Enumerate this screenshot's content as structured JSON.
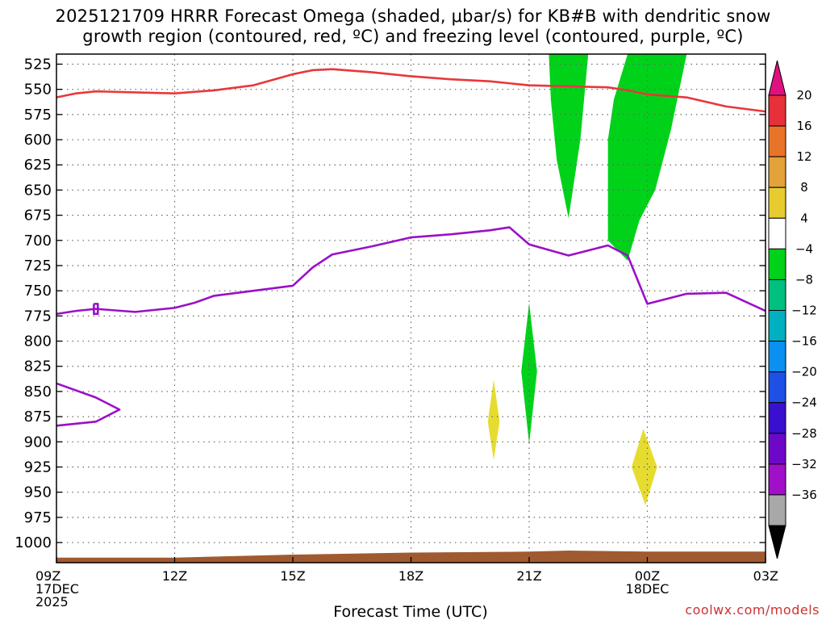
{
  "chart_data": {
    "type": "area",
    "title_line1": "2025121709 HRRR Forecast Omega (shaded, μbar/s) for KB#B with dendritic snow",
    "title_line2": "growth region (contoured, red, ºC) and freezing level (contoured, purple, ºC)",
    "xlabel": "Forecast Time (UTC)",
    "credit": "coolwx.com/models",
    "x_unit": "hours since 09Z 17DEC 2025",
    "xlim": [
      0,
      18
    ],
    "ylim": [
      1020,
      515
    ],
    "x_ticks": [
      {
        "x": 0,
        "lines": [
          "09Z",
          "17DEC",
          "2025"
        ]
      },
      {
        "x": 3,
        "lines": [
          "12Z"
        ]
      },
      {
        "x": 6,
        "lines": [
          "15Z"
        ]
      },
      {
        "x": 9,
        "lines": [
          "18Z"
        ]
      },
      {
        "x": 12,
        "lines": [
          "21Z"
        ]
      },
      {
        "x": 15,
        "lines": [
          "00Z",
          "18DEC"
        ]
      },
      {
        "x": 18,
        "lines": [
          "03Z"
        ]
      }
    ],
    "y_ticks": [
      "525",
      "550",
      "575",
      "600",
      "625",
      "650",
      "675",
      "700",
      "725",
      "750",
      "775",
      "800",
      "825",
      "850",
      "875",
      "900",
      "925",
      "950",
      "975",
      "1000"
    ],
    "grid": true,
    "colorbar": {
      "top_arrow_color": "#e0117f",
      "bottom_arrow_color": "#000000",
      "bins": [
        {
          "label": "20",
          "color": "#e8303a"
        },
        {
          "label": "16",
          "color": "#e8742a"
        },
        {
          "label": "12",
          "color": "#e3a23a"
        },
        {
          "label": "8",
          "color": "#e6cc2e"
        },
        {
          "label": "4",
          "color": "#ffffff"
        },
        {
          "label": "−4",
          "color": "#00d21a"
        },
        {
          "label": "−8",
          "color": "#00c080"
        },
        {
          "label": "−12",
          "color": "#00b0c0"
        },
        {
          "label": "−16",
          "color": "#0a90f0"
        },
        {
          "label": "−20",
          "color": "#1e50e6"
        },
        {
          "label": "−24",
          "color": "#3a10d0"
        },
        {
          "label": "−28",
          "color": "#6e08c8"
        },
        {
          "label": "−32",
          "color": "#a010c8"
        },
        {
          "label": "−36",
          "color": "#a8a8a8"
        }
      ]
    },
    "series": [
      {
        "kind": "line",
        "color": "#e8383a",
        "points": [
          [
            0,
            558
          ],
          [
            0.5,
            554
          ],
          [
            1,
            552
          ],
          [
            2,
            553
          ],
          [
            3,
            554
          ],
          [
            4,
            551
          ],
          [
            5,
            546
          ],
          [
            6,
            535
          ],
          [
            6.5,
            531
          ],
          [
            7,
            530
          ],
          [
            8,
            533
          ],
          [
            9,
            537
          ],
          [
            10,
            540
          ],
          [
            11,
            542
          ],
          [
            12,
            546
          ],
          [
            13,
            547
          ],
          [
            14,
            548
          ],
          [
            14.5,
            551
          ],
          [
            15,
            555
          ],
          [
            16,
            558
          ],
          [
            17,
            567
          ],
          [
            18,
            572
          ]
        ]
      },
      {
        "kind": "line",
        "color": "#9a10c8",
        "points": [
          [
            0,
            773
          ],
          [
            0.5,
            770
          ],
          [
            1,
            768
          ],
          [
            2,
            771
          ],
          [
            3,
            767
          ],
          [
            3.5,
            762
          ],
          [
            4,
            755
          ],
          [
            5,
            750
          ],
          [
            6,
            745
          ],
          [
            6.5,
            727
          ],
          [
            7,
            714
          ],
          [
            8,
            706
          ],
          [
            9,
            697
          ],
          [
            10,
            694
          ],
          [
            11,
            690
          ],
          [
            11.5,
            687
          ],
          [
            12,
            704
          ],
          [
            13,
            715
          ],
          [
            14,
            705
          ],
          [
            14.5,
            715
          ],
          [
            15,
            763
          ],
          [
            16,
            753
          ],
          [
            17,
            752
          ],
          [
            18,
            770
          ]
        ]
      },
      {
        "kind": "line",
        "color": "#9a10c8",
        "points": [
          [
            0,
            842
          ],
          [
            1,
            856
          ],
          [
            1.6,
            868
          ],
          [
            1,
            880
          ],
          [
            0,
            884
          ]
        ]
      },
      {
        "kind": "line",
        "color": "#9a10c8",
        "points": [
          [
            0.95,
            763
          ],
          [
            1.05,
            763
          ],
          [
            1.05,
            773
          ],
          [
            0.95,
            773
          ],
          [
            0.95,
            763
          ]
        ]
      },
      {
        "kind": "fill",
        "color": "#00d21a",
        "points": [
          [
            12.5,
            515
          ],
          [
            13.5,
            515
          ],
          [
            13.3,
            600
          ],
          [
            13.0,
            678
          ],
          [
            12.7,
            620
          ],
          [
            12.55,
            560
          ]
        ]
      },
      {
        "kind": "fill",
        "color": "#00d21a",
        "points": [
          [
            14.5,
            515
          ],
          [
            16.0,
            515
          ],
          [
            15.6,
            590
          ],
          [
            15.2,
            650
          ],
          [
            14.8,
            680
          ],
          [
            14.5,
            720
          ],
          [
            14.0,
            700
          ],
          [
            14.0,
            600
          ],
          [
            14.15,
            560
          ]
        ]
      },
      {
        "kind": "fill",
        "color": "#00d21a",
        "points": [
          [
            12.0,
            762
          ],
          [
            12.2,
            830
          ],
          [
            12.0,
            902
          ],
          [
            11.8,
            830
          ]
        ]
      },
      {
        "kind": "fill",
        "color": "#e6dc30",
        "points": [
          [
            11.1,
            838
          ],
          [
            11.25,
            880
          ],
          [
            11.1,
            918
          ],
          [
            10.95,
            880
          ]
        ]
      },
      {
        "kind": "fill",
        "color": "#e6dc30",
        "points": [
          [
            14.9,
            887
          ],
          [
            15.25,
            925
          ],
          [
            14.95,
            963
          ],
          [
            14.6,
            925
          ]
        ]
      },
      {
        "kind": "terrain",
        "color": "#a05a30",
        "top_points": [
          [
            0,
            1015
          ],
          [
            3,
            1015
          ],
          [
            6,
            1012
          ],
          [
            9,
            1010
          ],
          [
            12,
            1009
          ],
          [
            13,
            1008
          ],
          [
            15,
            1009
          ],
          [
            18,
            1009
          ]
        ]
      }
    ]
  }
}
